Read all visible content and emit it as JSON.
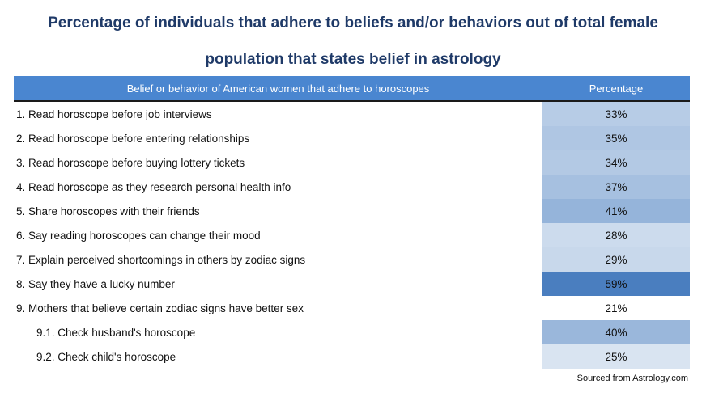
{
  "title_line1": "Percentage of individuals that adhere to beliefs and/or behaviors out of total female",
  "title_line2": "population that states belief in astrology",
  "source": "Sourced from Astrology.com",
  "chart_data": {
    "type": "table",
    "columns": [
      "Belief or behavior of American women that adhere to horoscopes",
      "Percentage"
    ],
    "rows": [
      {
        "label": "1. Read horoscope before job interviews",
        "value": 33,
        "display": "33%",
        "indent": false
      },
      {
        "label": "2. Read horoscope before entering relationships",
        "value": 35,
        "display": "35%",
        "indent": false
      },
      {
        "label": "3. Read horoscope before buying lottery tickets",
        "value": 34,
        "display": "34%",
        "indent": false
      },
      {
        "label": "4. Read horoscope as they research personal health info",
        "value": 37,
        "display": "37%",
        "indent": false
      },
      {
        "label": "5. Share horoscopes with their friends",
        "value": 41,
        "display": "41%",
        "indent": false
      },
      {
        "label": "6. Say reading horoscopes can change their mood",
        "value": 28,
        "display": "28%",
        "indent": false
      },
      {
        "label": "7. Explain perceived shortcomings in others by zodiac signs",
        "value": 29,
        "display": "29%",
        "indent": false
      },
      {
        "label": "8. Say they have a lucky number",
        "value": 59,
        "display": "59%",
        "indent": false
      },
      {
        "label": "9. Mothers that believe certain zodiac signs have better sex",
        "value": 21,
        "display": "21%",
        "indent": false
      },
      {
        "label": "9.1. Check husband's horoscope",
        "value": 40,
        "display": "40%",
        "indent": true
      },
      {
        "label": "9.2. Check child's horoscope",
        "value": 25,
        "display": "25%",
        "indent": true
      }
    ],
    "colors": {
      "header": "#4a86d0",
      "title": "#1f3a68",
      "heat_low": "#ffffff",
      "heat_high": "#4a7ebf"
    }
  }
}
